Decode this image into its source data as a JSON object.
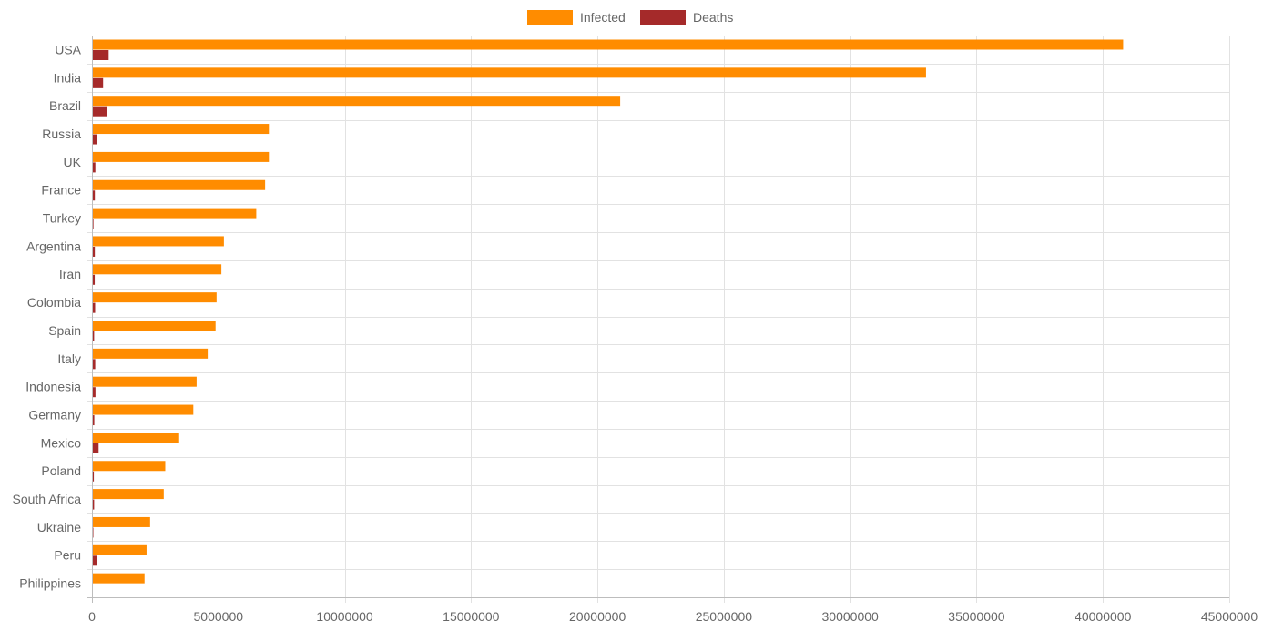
{
  "chart_data": {
    "type": "bar",
    "orientation": "horizontal",
    "categories": [
      "USA",
      "India",
      "Brazil",
      "Russia",
      "UK",
      "France",
      "Turkey",
      "Argentina",
      "Iran",
      "Colombia",
      "Spain",
      "Italy",
      "Indonesia",
      "Germany",
      "Mexico",
      "Poland",
      "South Africa",
      "Ukraine",
      "Peru",
      "Philippines"
    ],
    "series": [
      {
        "name": "Infected",
        "color": "#ff8c00",
        "values": [
          40800000,
          33000000,
          20900000,
          7000000,
          7000000,
          6850000,
          6500000,
          5220000,
          5120000,
          4930000,
          4890000,
          4580000,
          4140000,
          4010000,
          3450000,
          2900000,
          2840000,
          2300000,
          2160000,
          2080000
        ]
      },
      {
        "name": "Deaths",
        "color": "#a52a2a",
        "values": [
          660000,
          440000,
          580000,
          190000,
          135000,
          115000,
          59000,
          114000,
          110000,
          126000,
          86000,
          130000,
          139000,
          93000,
          262000,
          75000,
          86000,
          54000,
          199000,
          34000
        ]
      }
    ],
    "xlim": [
      0,
      45000000
    ],
    "xticks": [
      "0",
      "5000000",
      "10000000",
      "15000000",
      "20000000",
      "25000000",
      "30000000",
      "35000000",
      "40000000",
      "45000000"
    ],
    "grid": true,
    "legend_position": "top-center",
    "title": "",
    "xlabel": "",
    "ylabel": ""
  }
}
